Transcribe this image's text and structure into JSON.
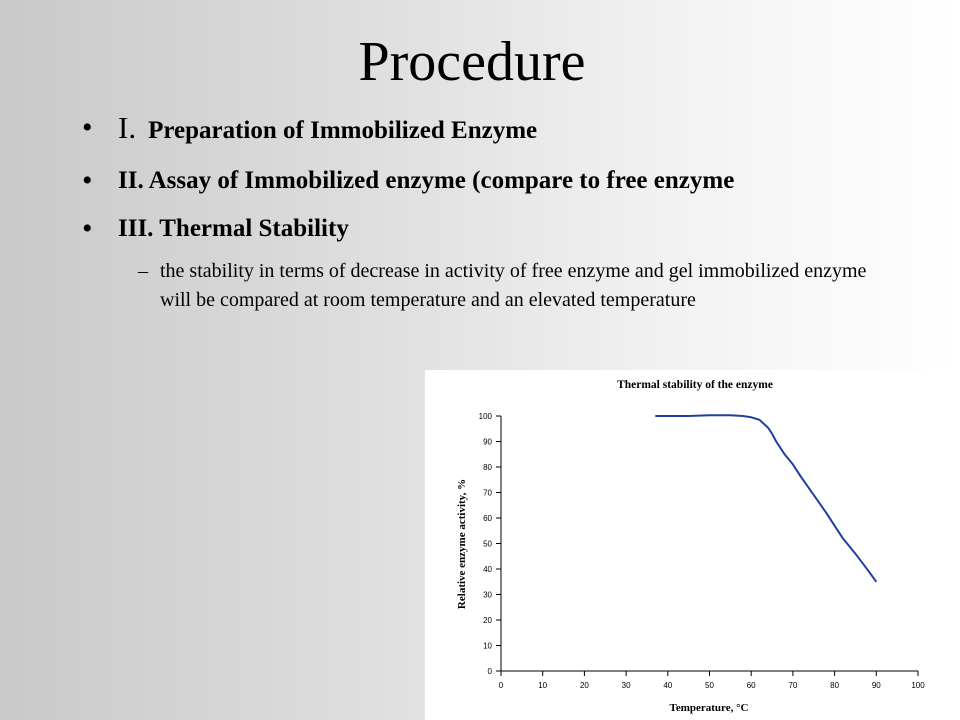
{
  "slide": {
    "title": "Procedure",
    "bullet_glyph": "•",
    "items": [
      {
        "number": "I.",
        "text": "Preparation of Immobilized Enzyme"
      },
      {
        "text": "II.  Assay of Immobilized enzyme (compare to free enzyme"
      },
      {
        "text": "III.  Thermal Stability"
      }
    ],
    "sub_item": {
      "dash": "–",
      "text": "the stability in terms of decrease in activity of free enzyme and gel immobilized enzyme will be compared at room temperature and an elevated temperature"
    }
  },
  "chart_data": {
    "type": "line",
    "title": "Thermal stability of the enzyme",
    "xlabel": "Temperature, °C",
    "ylabel": "Relative enzyme activity, %",
    "xlim": [
      0,
      100
    ],
    "ylim": [
      0,
      100
    ],
    "xticks": [
      0,
      10,
      20,
      30,
      40,
      50,
      60,
      70,
      80,
      90,
      100
    ],
    "yticks": [
      0,
      10,
      20,
      30,
      40,
      50,
      60,
      70,
      80,
      90,
      100
    ],
    "grid": false,
    "line_color": "#1f3fa0",
    "series": [
      {
        "x": [
          37,
          40,
          45,
          50,
          55,
          58,
          60,
          62,
          63,
          64,
          65,
          66,
          68,
          70,
          72,
          75,
          78,
          80,
          82,
          85,
          88,
          90
        ],
        "y": [
          100,
          100,
          100,
          100.3,
          100.3,
          100,
          99.5,
          98.5,
          97,
          95.5,
          93,
          90,
          85,
          81,
          76,
          69,
          62,
          57,
          52,
          46,
          39.5,
          35
        ]
      }
    ]
  }
}
